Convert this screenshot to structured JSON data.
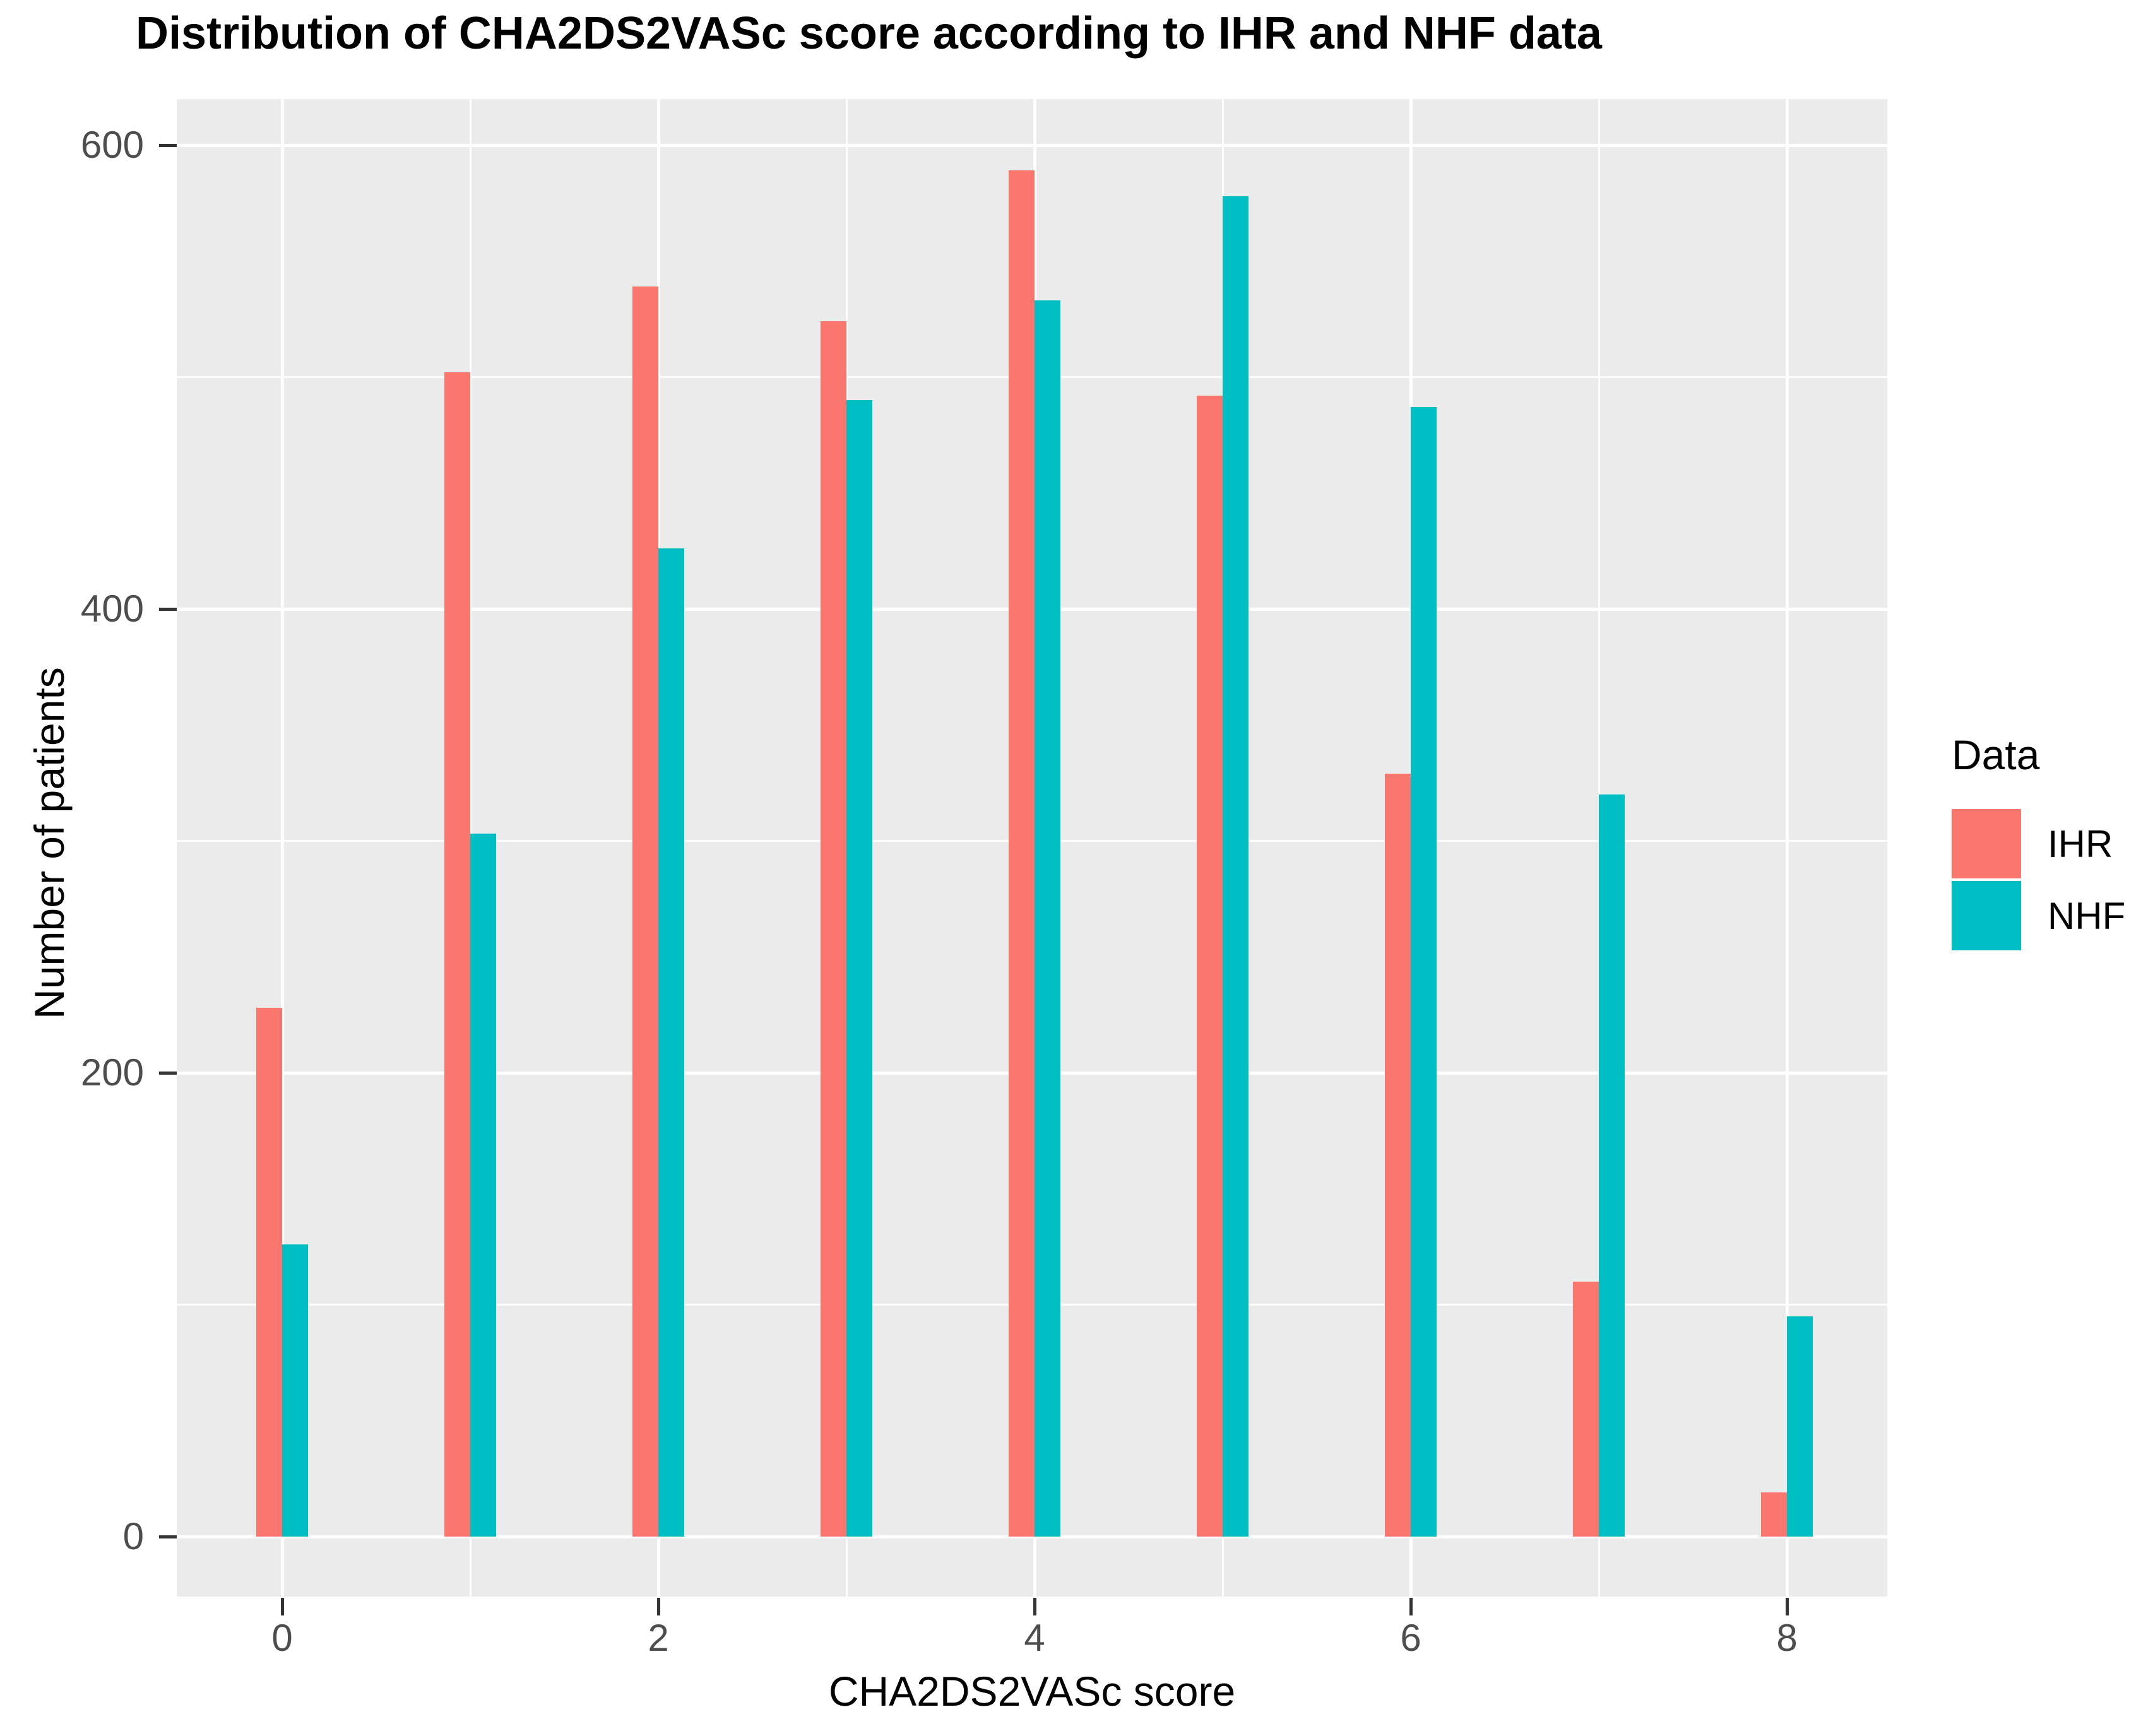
{
  "title": "Distribution of CHA2DS2VASc score according to IHR and NHF data",
  "axes": {
    "x": {
      "label": "CHA2DS2VASc score",
      "tick_labels": [
        "0",
        "2",
        "4",
        "6",
        "8"
      ]
    },
    "y": {
      "label": "Number of patients",
      "tick_labels": [
        "0",
        "200",
        "400",
        "600"
      ]
    }
  },
  "legend": {
    "title": "Data",
    "entries": [
      {
        "label": "IHR",
        "color": "#F8766D"
      },
      {
        "label": "NHF",
        "color": "#00BFC4"
      }
    ],
    "position": "right"
  },
  "colors": {
    "panel_background": "#EBEBEB",
    "gridline": "#FFFFFF",
    "tick_text": "#4D4D4D",
    "tick_mark": "#333333",
    "title_text": "#000000"
  },
  "chart_data": {
    "type": "bar",
    "title": "Distribution of CHA2DS2VASc score according to IHR and NHF data",
    "xlabel": "CHA2DS2VASc score",
    "ylabel": "Number of patients",
    "categories": [
      0,
      1,
      2,
      3,
      4,
      5,
      6,
      7,
      8
    ],
    "series": [
      {
        "name": "IHR",
        "color": "#F8766D",
        "values": [
          228,
          502,
          539,
          524,
          589,
          492,
          329,
          110,
          19
        ]
      },
      {
        "name": "NHF",
        "color": "#00BFC4",
        "values": [
          126,
          303,
          426,
          490,
          533,
          578,
          487,
          320,
          95
        ]
      }
    ],
    "ylim": [
      0,
      620
    ],
    "y_major_ticks": [
      0,
      200,
      400,
      600
    ],
    "y_minor_gridlines": [
      100,
      300,
      500
    ],
    "x_major_ticks": [
      0,
      2,
      4,
      6,
      8
    ],
    "x_minor_gridlines": [
      1,
      3,
      5,
      7
    ],
    "grid": true,
    "legend_position": "right",
    "legend_title": "Data",
    "bar_arrangement": "dodged"
  }
}
